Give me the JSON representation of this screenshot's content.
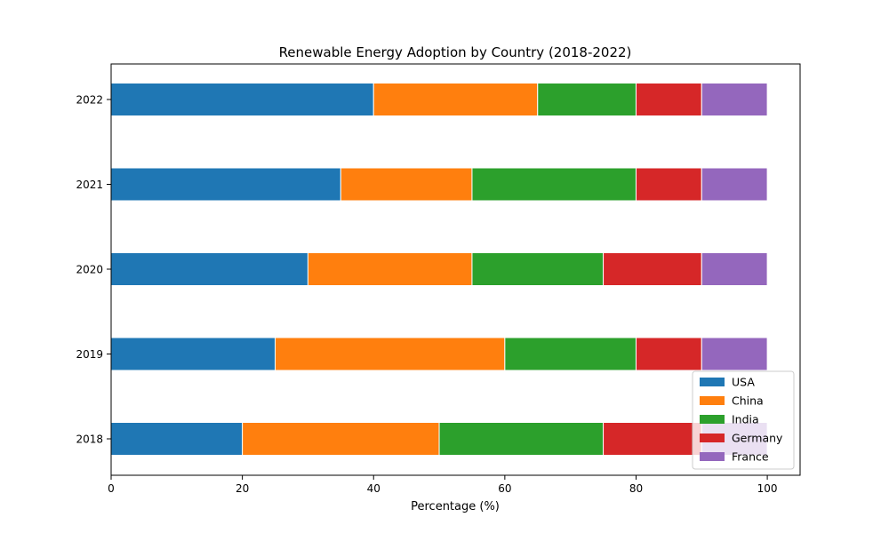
{
  "chart_data": {
    "type": "bar",
    "orientation": "horizontal",
    "stacked": true,
    "title": "Renewable Energy Adoption by Country (2018-2022)",
    "xlabel": "Percentage (%)",
    "ylabel": "",
    "xlim": [
      0,
      105
    ],
    "xticks": [
      0,
      20,
      40,
      60,
      80,
      100
    ],
    "categories": [
      "2018",
      "2019",
      "2020",
      "2021",
      "2022"
    ],
    "series": [
      {
        "name": "USA",
        "color": "#1f77b4",
        "values": [
          20,
          25,
          30,
          35,
          40
        ]
      },
      {
        "name": "China",
        "color": "#ff7f0e",
        "values": [
          30,
          35,
          25,
          20,
          25
        ]
      },
      {
        "name": "India",
        "color": "#2ca02c",
        "values": [
          25,
          20,
          20,
          25,
          15
        ]
      },
      {
        "name": "Germany",
        "color": "#d62728",
        "values": [
          15,
          10,
          15,
          10,
          10
        ]
      },
      {
        "name": "France",
        "color": "#9467bd",
        "values": [
          10,
          10,
          10,
          10,
          10
        ]
      }
    ],
    "grid": false,
    "legend_position": "lower-right"
  }
}
